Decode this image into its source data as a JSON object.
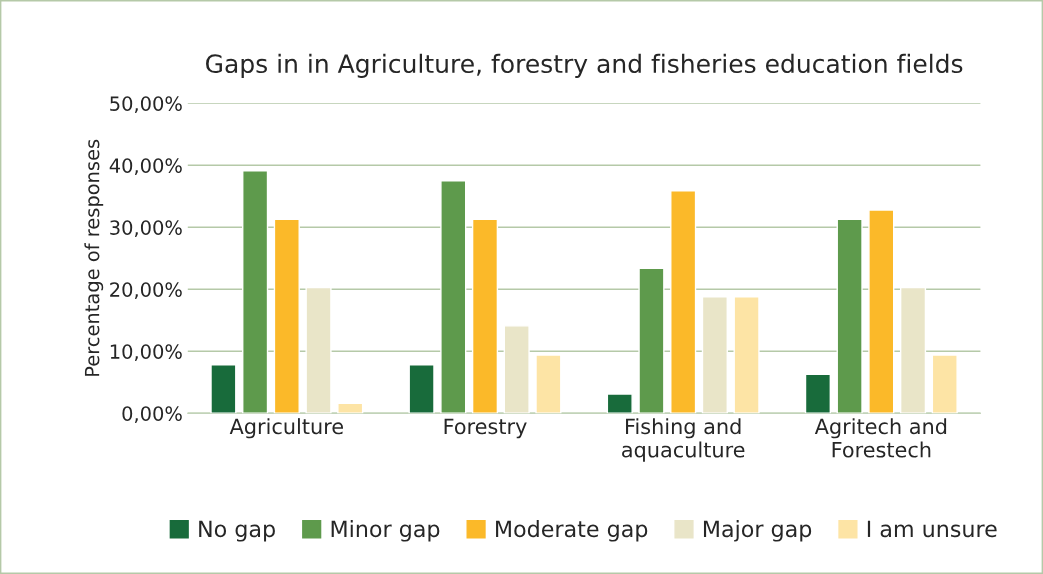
{
  "chart_data": {
    "type": "bar",
    "title": "Gaps in in Agriculture, forestry and fisheries education fields",
    "ylabel": "Percentage of responses",
    "categories": [
      "Agriculture",
      "Forestry",
      "Fishing and\naquaculture",
      "Agritech and\nForestech"
    ],
    "series": [
      {
        "name": "No gap",
        "color": "#186b3b",
        "values": [
          7.8,
          7.8,
          3.1,
          6.3
        ]
      },
      {
        "name": "Minor gap",
        "color": "#5e9a4c",
        "values": [
          39.1,
          37.5,
          23.4,
          31.3
        ]
      },
      {
        "name": "Moderate gap",
        "color": "#fbb929",
        "values": [
          31.3,
          31.3,
          35.9,
          32.8
        ]
      },
      {
        "name": "Major gap",
        "color": "#e9e5c8",
        "values": [
          20.3,
          14.1,
          18.8,
          20.3
        ]
      },
      {
        "name": "I am unsure",
        "color": "#fde4a5",
        "values": [
          1.6,
          9.4,
          18.8,
          9.4
        ]
      }
    ],
    "ylim": [
      0,
      50
    ],
    "yticks": [
      {
        "value": 0,
        "label": "0,00%"
      },
      {
        "value": 10,
        "label": "10,00%"
      },
      {
        "value": 20,
        "label": "20,00%"
      },
      {
        "value": 30,
        "label": "30,00%"
      },
      {
        "value": 40,
        "label": "40,00%"
      },
      {
        "value": 50,
        "label": "50,00%"
      }
    ],
    "grid": "y",
    "legend": "bottom"
  }
}
